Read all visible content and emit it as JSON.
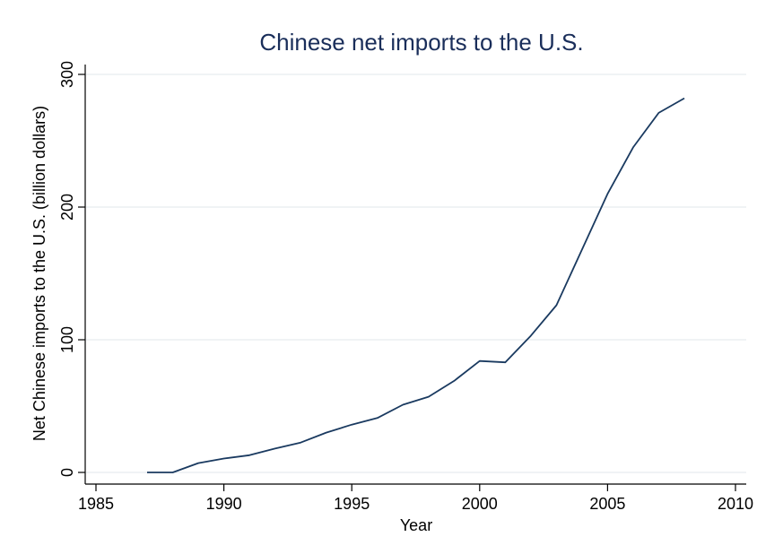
{
  "chart_data": {
    "type": "line",
    "title": "Chinese net imports to the U.S.",
    "xlabel": "Year",
    "ylabel": "Net Chinese imports to the U.S. (billion dollars)",
    "xlim": [
      1985,
      2010
    ],
    "ylim": [
      0,
      300
    ],
    "xticks": [
      1985,
      1990,
      1995,
      2000,
      2005,
      2010
    ],
    "yticks": [
      0,
      100,
      200,
      300
    ],
    "grid": true,
    "legend": "none",
    "colors": {
      "line": "#1a3a60",
      "title": "#1a2e5a",
      "grid": "#e8ecef"
    },
    "series": [
      {
        "x": [
          1987,
          1988,
          1989,
          1990,
          1991,
          1992,
          1993,
          1994,
          1995,
          1996,
          1997,
          1998,
          1999,
          2000,
          2001,
          2002,
          2003,
          2004,
          2005,
          2006,
          2007,
          2008
        ],
        "values": [
          0,
          0,
          7,
          10.5,
          13,
          18,
          22.5,
          30,
          36,
          41,
          51,
          57,
          69,
          84,
          83,
          103,
          126,
          168,
          210,
          245,
          271,
          282
        ]
      }
    ]
  }
}
